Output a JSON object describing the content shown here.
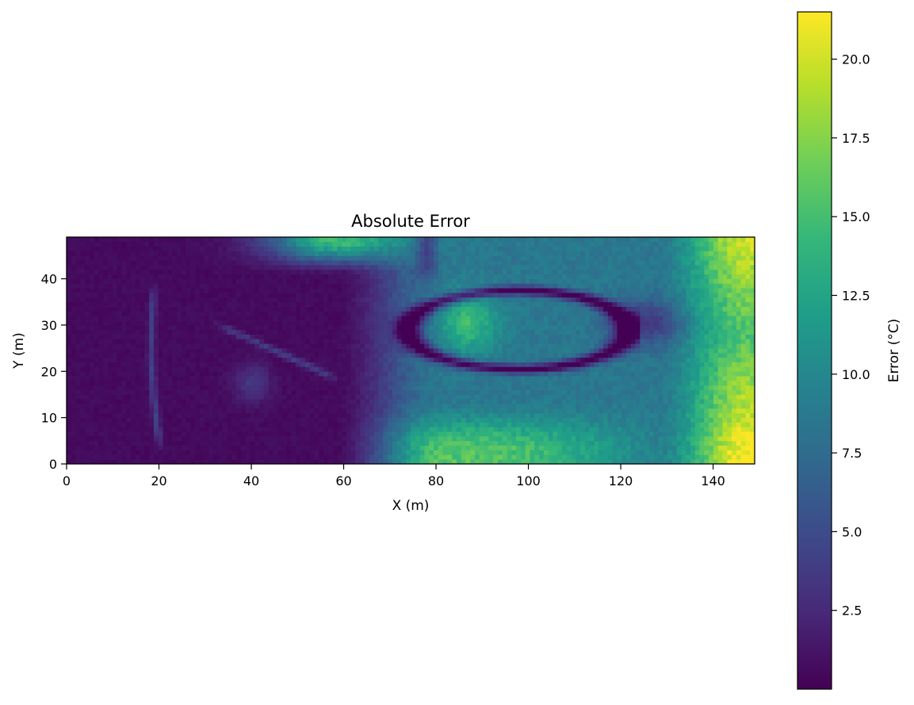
{
  "chart_data": {
    "type": "heatmap",
    "title": "Absolute Error",
    "xlabel": "X (m)",
    "ylabel": "Y (m)",
    "xlim": [
      0,
      149
    ],
    "ylim": [
      0,
      49
    ],
    "xticks": [
      0,
      20,
      40,
      60,
      80,
      100,
      120,
      140
    ],
    "yticks": [
      0,
      10,
      20,
      30,
      40
    ],
    "grid": false,
    "colormap": "viridis",
    "colorbar": {
      "label": "Error (°C)",
      "range": [
        0,
        21.5
      ],
      "ticks": [
        2.5,
        5.0,
        7.5,
        10.0,
        12.5,
        15.0,
        17.5,
        20.0
      ],
      "tick_labels": [
        "2.5",
        "5.0",
        "7.5",
        "10.0",
        "12.5",
        "15.0",
        "17.5",
        "20.0"
      ]
    },
    "grid_size": {
      "nx": 150,
      "ny": 49
    },
    "features": {
      "hot_spot": {
        "x": 87,
        "y": 30,
        "value": 14.5
      },
      "right_edge_value": 21,
      "bottom_band_value": 17,
      "top_band_value": 17,
      "left_region_value": 0.6
    }
  },
  "colors": {
    "viridis": [
      "#440154",
      "#482878",
      "#3e4989",
      "#31688e",
      "#26828e",
      "#1f9e89",
      "#35b779",
      "#6ece58",
      "#b5de2b",
      "#fde725"
    ]
  }
}
